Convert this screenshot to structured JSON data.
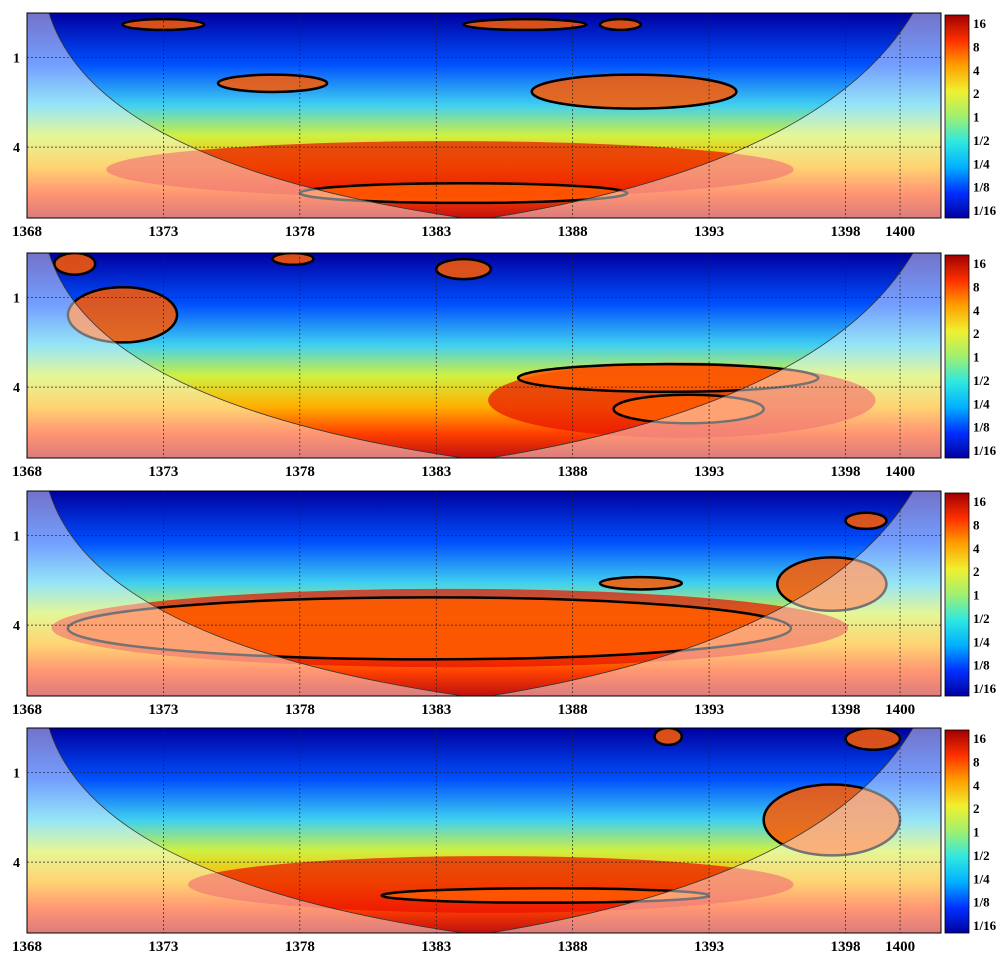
{
  "chart_data": {
    "type": "heatmap",
    "description": "Four stacked wavelet power spectra (continuous wavelet transform); x = year, y = period (log2 scale, ticks 1 and 4); cone of influence shading; black contours mark significant regions, grey contours inside shaded COI area.",
    "x_axis": {
      "range": [
        1368,
        1401.5
      ],
      "tick_values": [
        1368,
        1373,
        1378,
        1383,
        1388,
        1393,
        1398,
        1400
      ],
      "tick_labels": [
        "1368",
        "1373",
        "1378",
        "1383",
        "1388",
        "1393",
        "1398",
        "1400"
      ]
    },
    "y_axis": {
      "scale": "log2",
      "range": [
        0.5,
        12
      ],
      "tick_values": [
        1,
        4
      ],
      "tick_labels": [
        "1",
        "4"
      ],
      "direction": "increasing downward"
    },
    "colorbar": {
      "labels": [
        "16",
        "8",
        "4",
        "2",
        "1",
        "1/2",
        "1/4",
        "1/8",
        "1/16"
      ],
      "colormap": "jet",
      "colors": [
        "#0000a0",
        "#0030ff",
        "#00b0ff",
        "#30e8e0",
        "#a0f070",
        "#f0f030",
        "#ffa000",
        "#ff3000",
        "#a00000"
      ]
    },
    "grid": true,
    "panels": [
      {
        "index": 1,
        "high_power_band_period": [
          4,
          8
        ],
        "high_power_band_years": [
          1372,
          1395
        ],
        "significant_regions": [
          {
            "years": [
              1371.5,
              1374.5
            ],
            "period": [
              0.55,
              0.65
            ]
          },
          {
            "years": [
              1375,
              1379
            ],
            "period": [
              1.3,
              1.7
            ]
          },
          {
            "years": [
              1384,
              1388.5
            ],
            "period": [
              0.55,
              0.65
            ]
          },
          {
            "years": [
              1389,
              1390.5
            ],
            "period": [
              0.55,
              0.65
            ]
          },
          {
            "years": [
              1386.5,
              1394
            ],
            "period": [
              1.3,
              2.2
            ]
          },
          {
            "years": [
              1378,
              1390
            ],
            "period": [
              7,
              9.5
            ]
          }
        ]
      },
      {
        "index": 2,
        "high_power_band_period": [
          3,
          8
        ],
        "high_power_band_years": [
          1386,
          1398
        ],
        "significant_regions": [
          {
            "years": [
              1369,
              1370.5
            ],
            "period": [
              0.5,
              0.7
            ]
          },
          {
            "years": [
              1377,
              1378.5
            ],
            "period": [
              0.5,
              0.6
            ]
          },
          {
            "years": [
              1383,
              1385
            ],
            "period": [
              0.55,
              0.75
            ]
          },
          {
            "years": [
              1369.5,
              1373.5
            ],
            "period": [
              0.85,
              2.0
            ]
          },
          {
            "years": [
              1386,
              1397
            ],
            "period": [
              2.8,
              4.3
            ]
          },
          {
            "years": [
              1389.5,
              1395
            ],
            "period": [
              4.5,
              7
            ]
          }
        ]
      },
      {
        "index": 3,
        "high_power_band_period": [
          2.5,
          7
        ],
        "high_power_band_years": [
          1370,
          1397
        ],
        "significant_regions": [
          {
            "years": [
              1369.5,
              1396
            ],
            "period": [
              2.6,
              6.8
            ]
          },
          {
            "years": [
              1389,
              1392
            ],
            "period": [
              1.9,
              2.3
            ]
          },
          {
            "years": [
              1395.5,
              1399.5
            ],
            "period": [
              1.4,
              3.2
            ]
          },
          {
            "years": [
              1398,
              1399.5
            ],
            "period": [
              0.7,
              0.9
            ]
          }
        ]
      },
      {
        "index": 4,
        "high_power_band_period": [
          4,
          8
        ],
        "high_power_band_years": [
          1375,
          1395
        ],
        "significant_regions": [
          {
            "years": [
              1381,
              1393
            ],
            "period": [
              6,
              7.5
            ]
          },
          {
            "years": [
              1395,
              1400
            ],
            "period": [
              1.2,
              3.6
            ]
          },
          {
            "years": [
              1391,
              1392
            ],
            "period": [
              0.5,
              0.65
            ]
          },
          {
            "years": [
              1398,
              1400
            ],
            "period": [
              0.5,
              0.7
            ]
          }
        ]
      }
    ]
  }
}
